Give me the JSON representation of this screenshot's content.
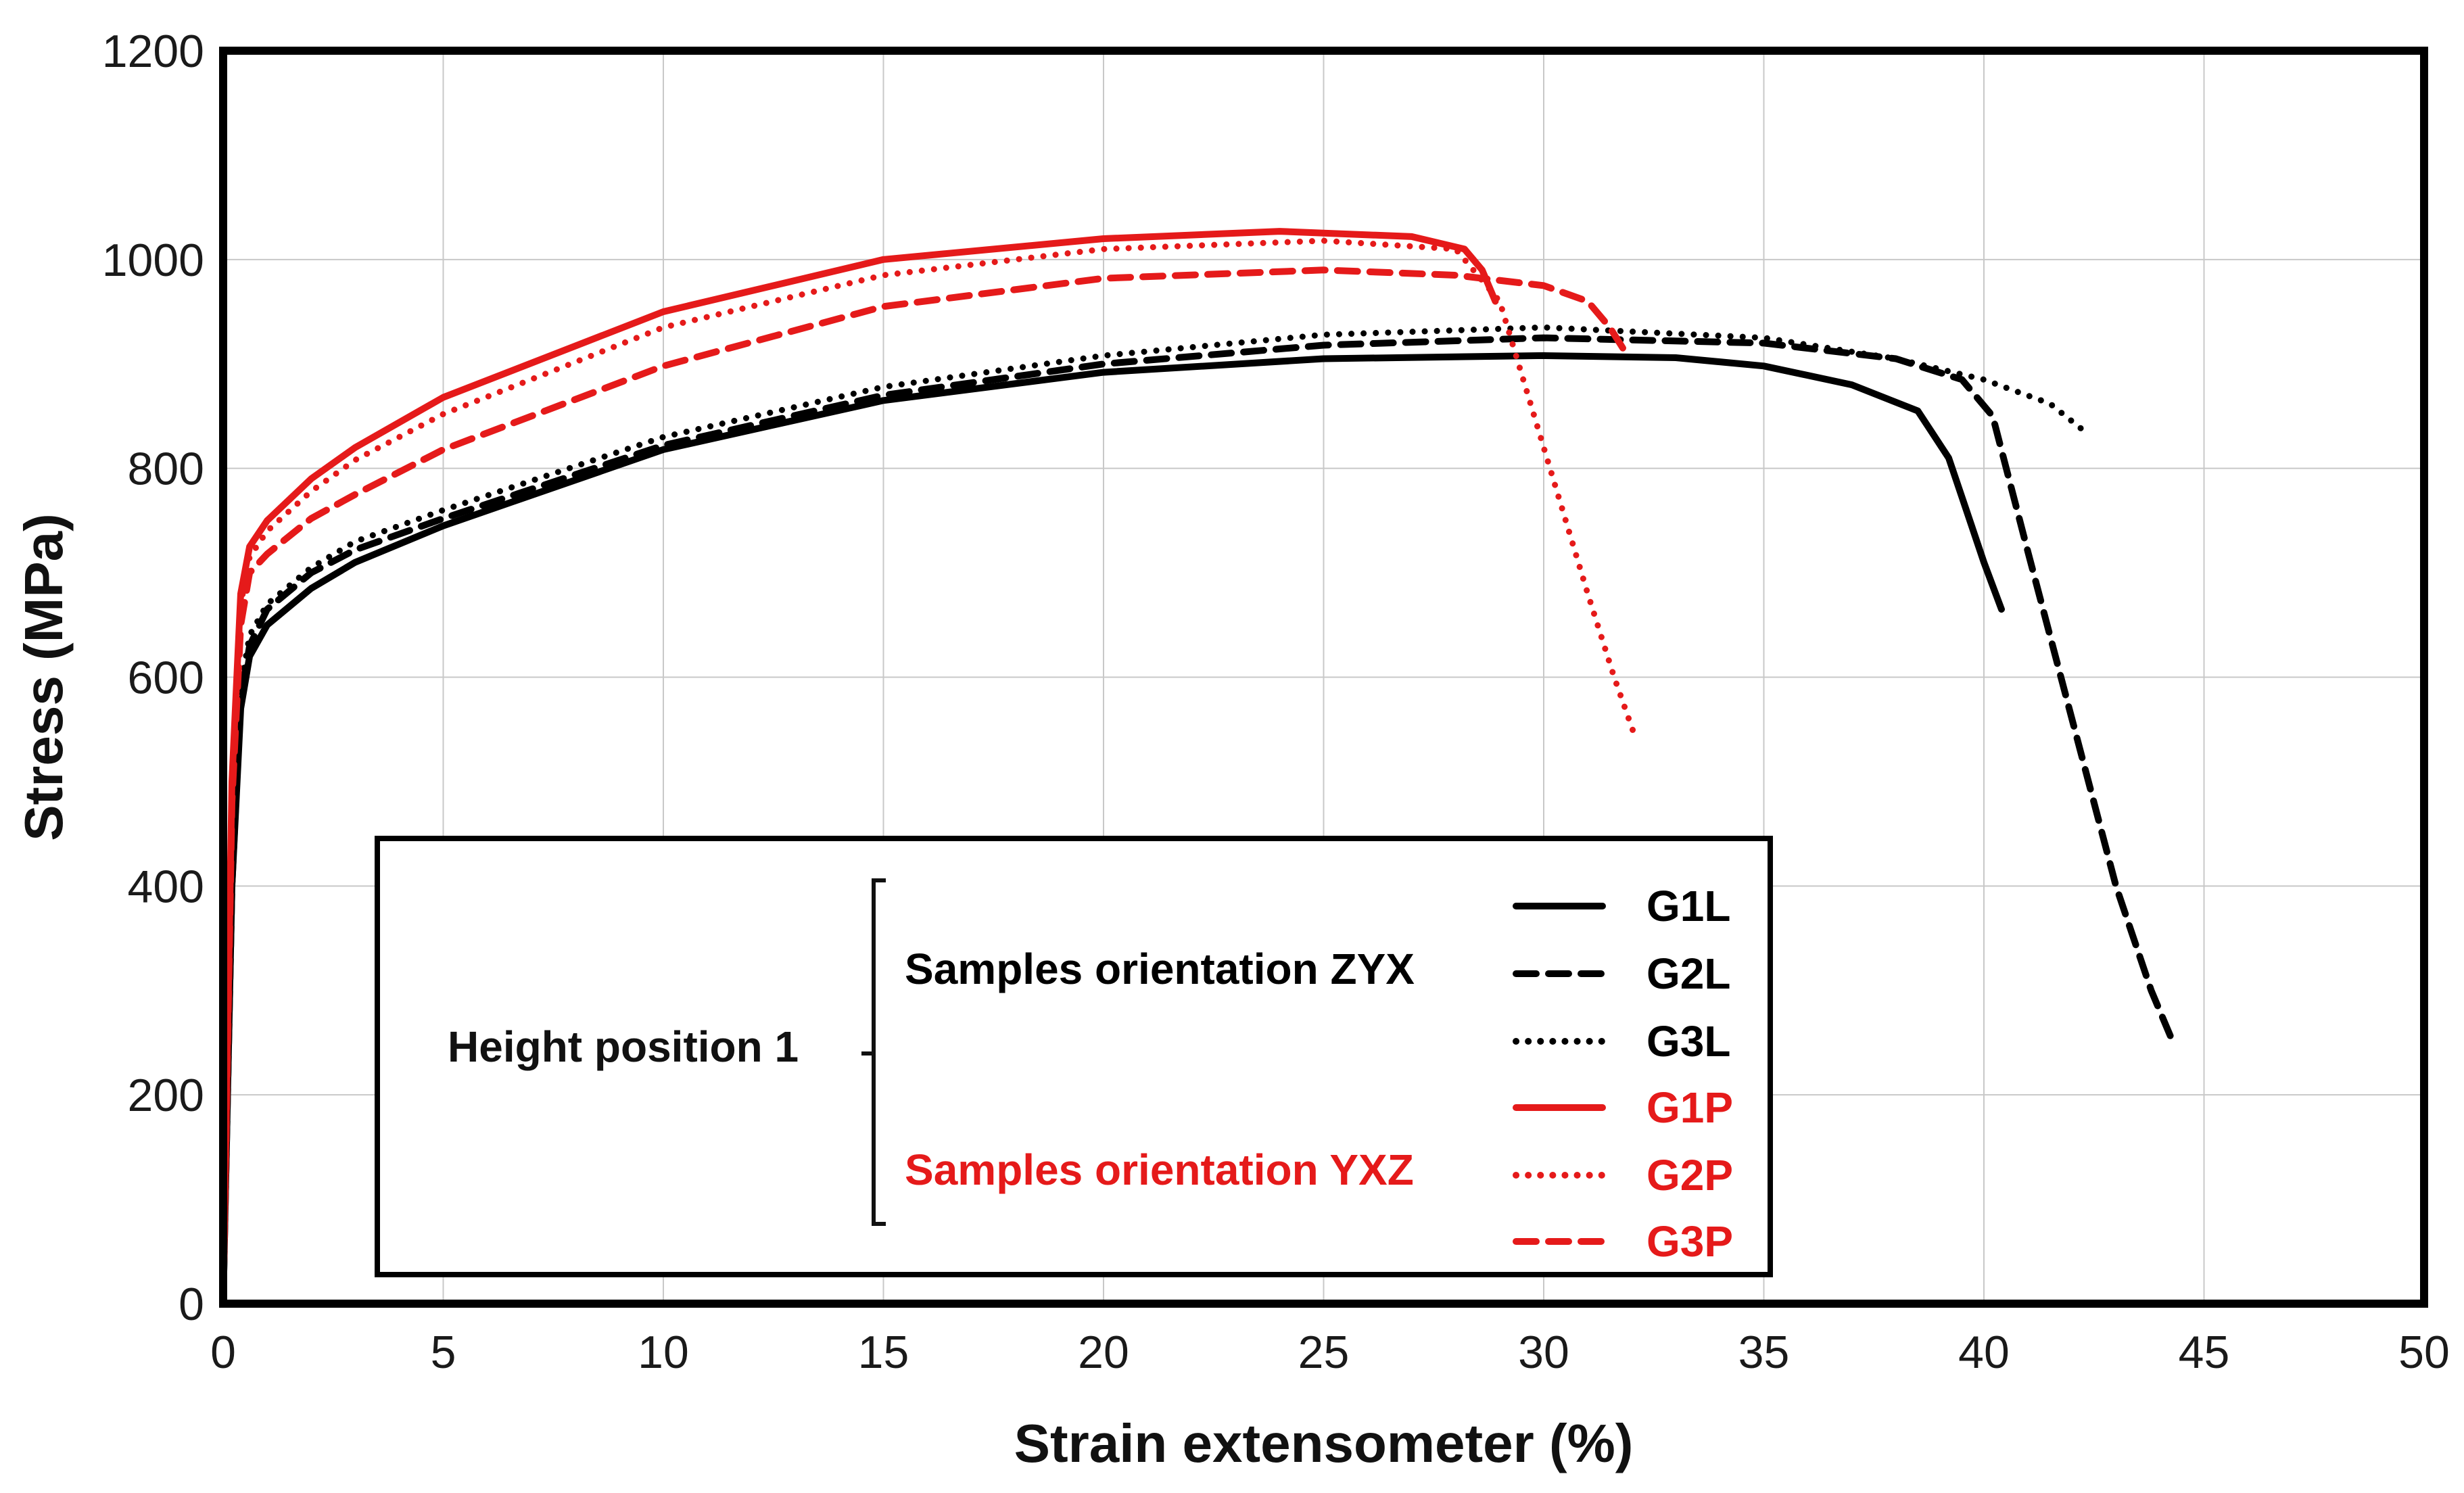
{
  "chart_data": {
    "type": "line",
    "title": "",
    "xlabel": "Strain extensometer (%)",
    "ylabel": "Stress (MPa)",
    "xlim": [
      0,
      50
    ],
    "ylim": [
      0,
      1200
    ],
    "xticks": [
      0,
      5,
      10,
      15,
      20,
      25,
      30,
      35,
      40,
      45,
      50
    ],
    "yticks": [
      0,
      200,
      400,
      600,
      800,
      1000,
      1200
    ],
    "grid": true,
    "series": [
      {
        "name": "G1L",
        "color": "#000000",
        "dash": "solid",
        "x": [
          0,
          0.2,
          0.4,
          0.6,
          1,
          2,
          3,
          5,
          10,
          15,
          20,
          25,
          30,
          33,
          35,
          37,
          38.5,
          39.2,
          39.6,
          40,
          40.4
        ],
        "y": [
          0,
          400,
          570,
          620,
          650,
          685,
          710,
          745,
          818,
          865,
          892,
          905,
          908,
          906,
          898,
          880,
          855,
          810,
          760,
          710,
          665
        ]
      },
      {
        "name": "G2L",
        "color": "#000000",
        "dash": "dashed",
        "x": [
          0,
          0.2,
          0.4,
          0.6,
          1,
          2,
          3,
          5,
          10,
          15,
          20,
          25,
          30,
          35,
          38,
          39.5,
          40.2,
          41,
          42,
          43,
          43.8,
          44.3
        ],
        "y": [
          0,
          400,
          580,
          630,
          665,
          700,
          722,
          752,
          822,
          870,
          900,
          918,
          925,
          920,
          905,
          885,
          850,
          720,
          560,
          400,
          300,
          250
        ]
      },
      {
        "name": "G3L",
        "color": "#000000",
        "dash": "dotted",
        "x": [
          0,
          0.2,
          0.4,
          0.6,
          1,
          2,
          3,
          5,
          10,
          15,
          20,
          25,
          30,
          35,
          38,
          40,
          41.5,
          42.3
        ],
        "y": [
          0,
          420,
          590,
          640,
          670,
          705,
          730,
          760,
          830,
          878,
          908,
          928,
          935,
          925,
          905,
          885,
          862,
          835
        ]
      },
      {
        "name": "G1P",
        "color": "#e51a1a",
        "dash": "solid",
        "x": [
          0,
          0.2,
          0.4,
          0.6,
          1,
          2,
          3,
          5,
          10,
          15,
          20,
          24,
          27,
          28.2,
          28.6,
          28.9
        ],
        "y": [
          0,
          500,
          680,
          725,
          750,
          790,
          820,
          868,
          950,
          1000,
          1020,
          1027,
          1022,
          1010,
          990,
          960
        ]
      },
      {
        "name": "G2P",
        "color": "#e51a1a",
        "dash": "dotted",
        "x": [
          0,
          0.2,
          0.4,
          0.6,
          1,
          2,
          3,
          5,
          10,
          15,
          20,
          25,
          28,
          29,
          30,
          31,
          31.6,
          32.1
        ],
        "y": [
          0,
          490,
          670,
          715,
          740,
          778,
          808,
          852,
          935,
          985,
          1010,
          1018,
          1010,
          960,
          820,
          680,
          600,
          540
        ]
      },
      {
        "name": "G3P",
        "color": "#e51a1a",
        "dash": "dashed",
        "x": [
          0,
          0.2,
          0.4,
          0.6,
          1,
          2,
          3,
          5,
          10,
          15,
          20,
          25,
          28,
          30,
          31,
          31.5,
          31.8
        ],
        "y": [
          0,
          480,
          650,
          700,
          718,
          752,
          775,
          818,
          898,
          955,
          982,
          990,
          985,
          975,
          960,
          935,
          915
        ]
      }
    ],
    "legend": {
      "placement": "lower-left",
      "group_label": "Height position 1",
      "subgroups": [
        {
          "label": "Samples orientation ZYX",
          "color": "#000000",
          "entries": [
            "G1L",
            "G2L",
            "G3L"
          ]
        },
        {
          "label": "Samples orientation YXZ",
          "color": "#e51a1a",
          "entries": [
            "G1P",
            "G2P",
            "G3P"
          ]
        }
      ]
    }
  }
}
